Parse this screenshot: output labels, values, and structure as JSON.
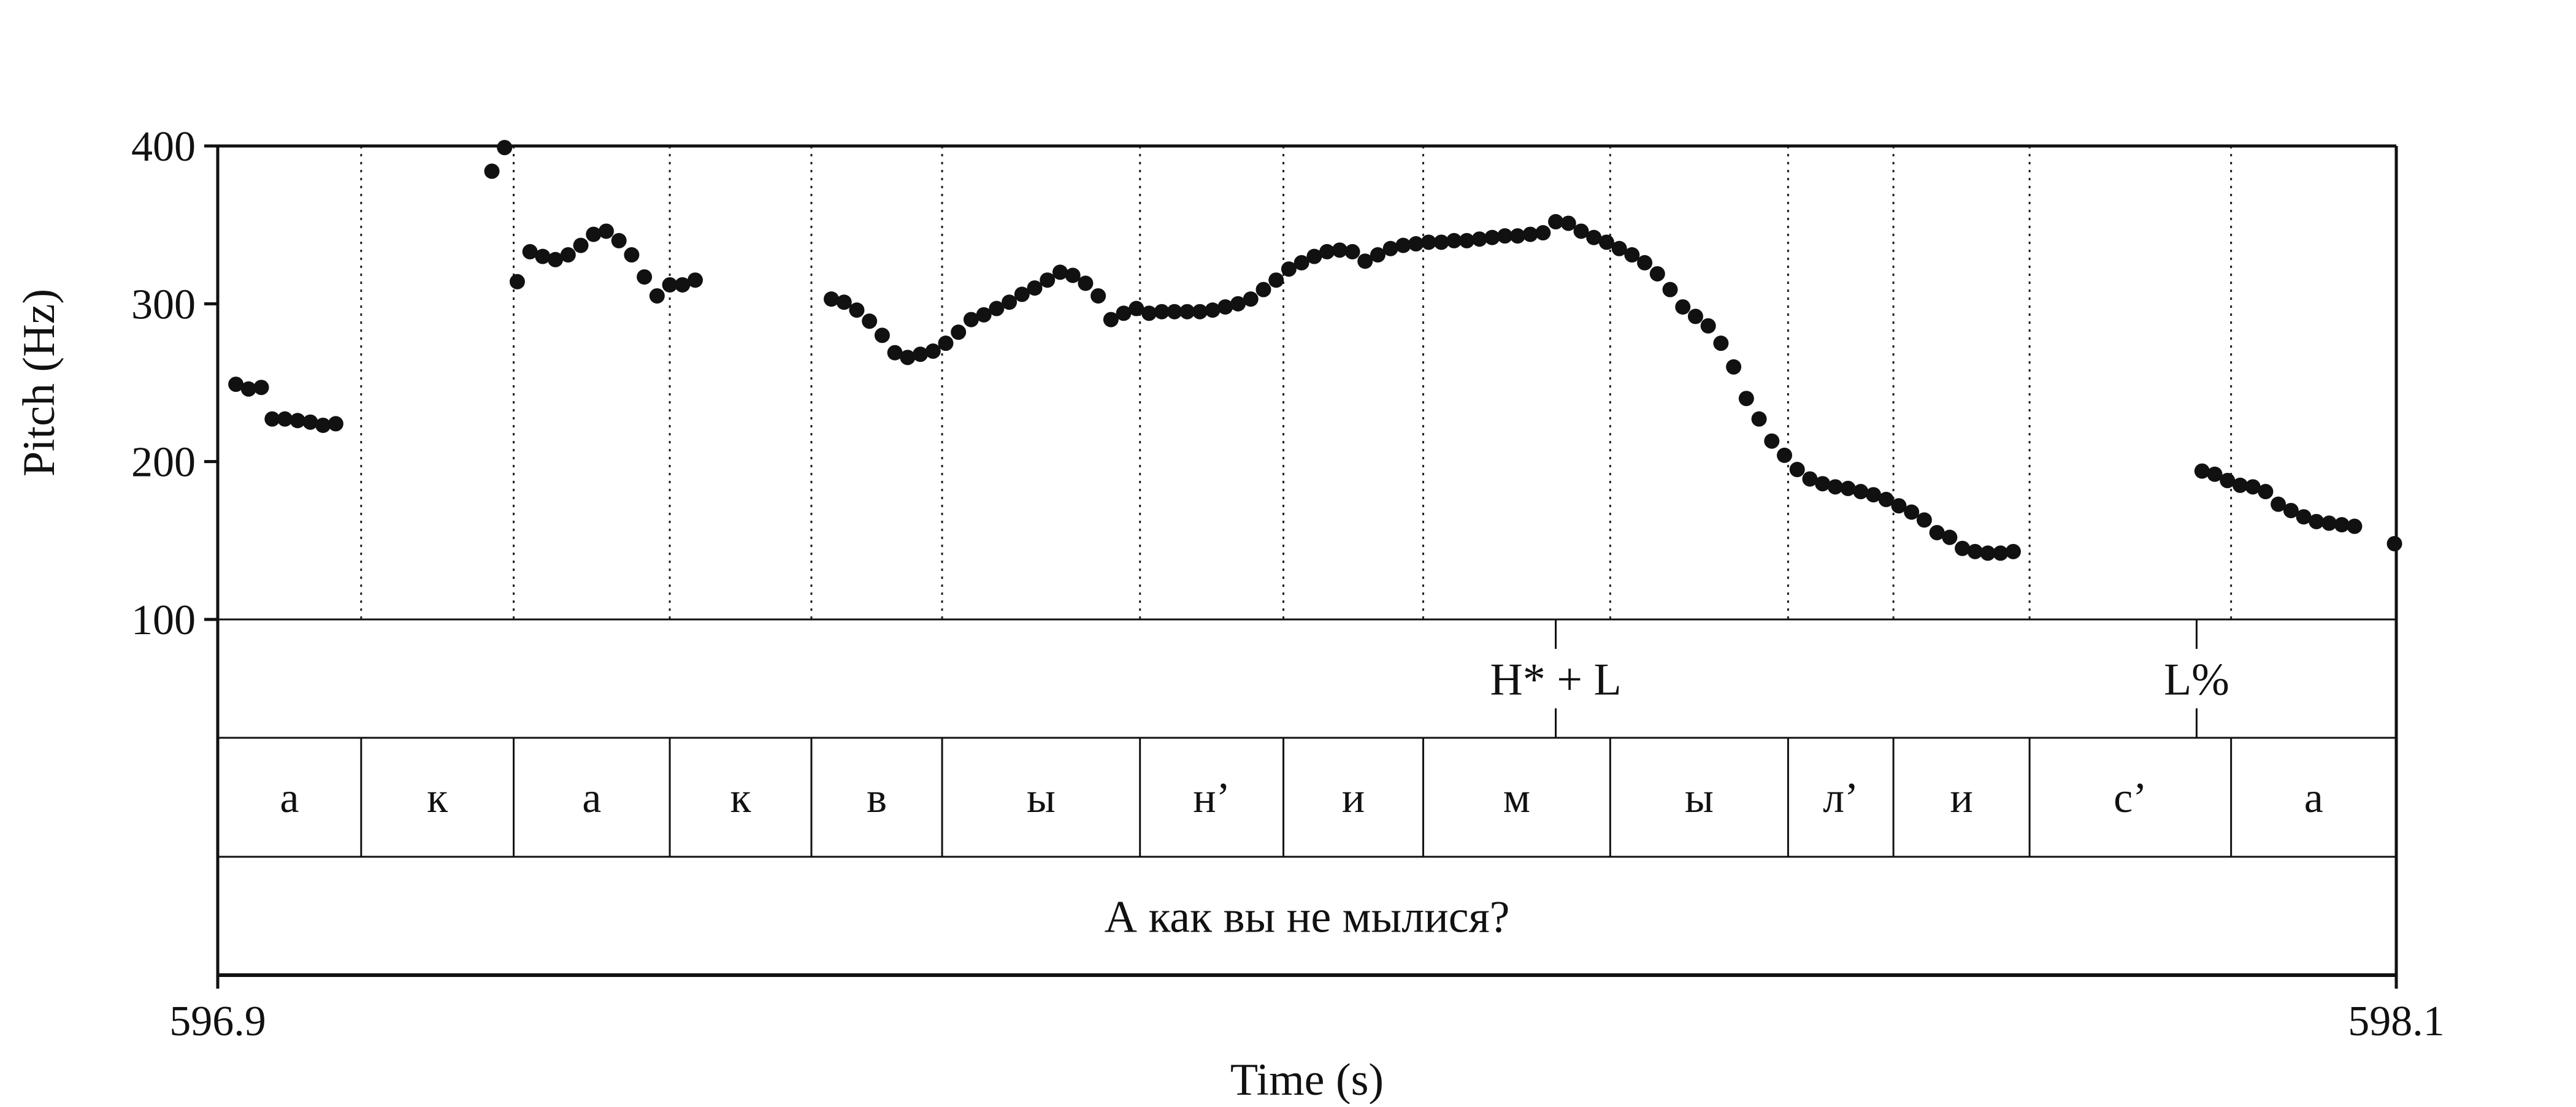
{
  "chart_data": {
    "type": "scatter",
    "title": "",
    "xlabel": "Time (s)",
    "ylabel": "Pitch (Hz)",
    "xlim": [
      596.9,
      598.1
    ],
    "ylim": [
      100,
      400
    ],
    "x_tick_labels": [
      "596.9",
      "598.1"
    ],
    "y_tick_labels": [
      "100",
      "200",
      "300",
      "400"
    ],
    "y_ticks": [
      100,
      200,
      300,
      400
    ],
    "grid": "vertical dotted lines at segment boundaries",
    "legend": "none",
    "marker_color": "#111111",
    "series": [
      {
        "points": [
          [
            596.91,
            249
          ],
          [
            596.917,
            246
          ],
          [
            596.924,
            247
          ],
          [
            596.93,
            227
          ],
          [
            596.937,
            227
          ],
          [
            596.944,
            226
          ],
          [
            596.951,
            225
          ],
          [
            596.958,
            223
          ],
          [
            596.965,
            224
          ],
          [
            597.051,
            384
          ],
          [
            597.058,
            399
          ],
          [
            597.065,
            314
          ],
          [
            597.072,
            333
          ],
          [
            597.079,
            330
          ],
          [
            597.086,
            328
          ],
          [
            597.093,
            331
          ],
          [
            597.1,
            337
          ],
          [
            597.107,
            344
          ],
          [
            597.114,
            346
          ],
          [
            597.121,
            340
          ],
          [
            597.128,
            331
          ],
          [
            597.135,
            317
          ],
          [
            597.142,
            305
          ],
          [
            597.149,
            312
          ],
          [
            597.156,
            312
          ],
          [
            597.163,
            315
          ],
          [
            597.238,
            303
          ],
          [
            597.245,
            301
          ],
          [
            597.252,
            296
          ],
          [
            597.259,
            289
          ],
          [
            597.266,
            280
          ],
          [
            597.273,
            269
          ],
          [
            597.28,
            266
          ],
          [
            597.287,
            268
          ],
          [
            597.294,
            270
          ],
          [
            597.301,
            275
          ],
          [
            597.308,
            282
          ],
          [
            597.315,
            290
          ],
          [
            597.322,
            293
          ],
          [
            597.329,
            297
          ],
          [
            597.336,
            301
          ],
          [
            597.343,
            306
          ],
          [
            597.35,
            310
          ],
          [
            597.357,
            315
          ],
          [
            597.364,
            320
          ],
          [
            597.371,
            318
          ],
          [
            597.378,
            313
          ],
          [
            597.385,
            305
          ],
          [
            597.392,
            290
          ],
          [
            597.399,
            294
          ],
          [
            597.406,
            297
          ],
          [
            597.413,
            294
          ],
          [
            597.42,
            295
          ],
          [
            597.427,
            295
          ],
          [
            597.434,
            295
          ],
          [
            597.441,
            295
          ],
          [
            597.448,
            296
          ],
          [
            597.455,
            298
          ],
          [
            597.462,
            300
          ],
          [
            597.469,
            303
          ],
          [
            597.476,
            309
          ],
          [
            597.483,
            315
          ],
          [
            597.49,
            322
          ],
          [
            597.497,
            326
          ],
          [
            597.504,
            330
          ],
          [
            597.511,
            333
          ],
          [
            597.518,
            334
          ],
          [
            597.525,
            333
          ],
          [
            597.532,
            327
          ],
          [
            597.539,
            331
          ],
          [
            597.546,
            335
          ],
          [
            597.553,
            337
          ],
          [
            597.56,
            338
          ],
          [
            597.567,
            339
          ],
          [
            597.574,
            339
          ],
          [
            597.581,
            340
          ],
          [
            597.588,
            340
          ],
          [
            597.595,
            341
          ],
          [
            597.602,
            342
          ],
          [
            597.609,
            343
          ],
          [
            597.616,
            343
          ],
          [
            597.623,
            344
          ],
          [
            597.63,
            345
          ],
          [
            597.637,
            352
          ],
          [
            597.644,
            351
          ],
          [
            597.651,
            346
          ],
          [
            597.658,
            342
          ],
          [
            597.665,
            339
          ],
          [
            597.672,
            335
          ],
          [
            597.679,
            331
          ],
          [
            597.686,
            326
          ],
          [
            597.693,
            319
          ],
          [
            597.7,
            309
          ],
          [
            597.707,
            298
          ],
          [
            597.714,
            292
          ],
          [
            597.721,
            286
          ],
          [
            597.728,
            275
          ],
          [
            597.735,
            260
          ],
          [
            597.742,
            240
          ],
          [
            597.749,
            227
          ],
          [
            597.756,
            213
          ],
          [
            597.763,
            204
          ],
          [
            597.77,
            195
          ],
          [
            597.777,
            189
          ],
          [
            597.784,
            186
          ],
          [
            597.791,
            184
          ],
          [
            597.798,
            183
          ],
          [
            597.805,
            181
          ],
          [
            597.812,
            179
          ],
          [
            597.819,
            176
          ],
          [
            597.826,
            172
          ],
          [
            597.833,
            168
          ],
          [
            597.84,
            163
          ],
          [
            597.847,
            155
          ],
          [
            597.854,
            152
          ],
          [
            597.861,
            145
          ],
          [
            597.868,
            143
          ],
          [
            597.875,
            142
          ],
          [
            597.882,
            142
          ],
          [
            597.889,
            143
          ],
          [
            597.993,
            194
          ],
          [
            598.0,
            192
          ],
          [
            598.007,
            188
          ],
          [
            598.014,
            185
          ],
          [
            598.021,
            184
          ],
          [
            598.028,
            181
          ],
          [
            598.035,
            173
          ],
          [
            598.042,
            169
          ],
          [
            598.049,
            165
          ],
          [
            598.056,
            162
          ],
          [
            598.063,
            161
          ],
          [
            598.07,
            160
          ],
          [
            598.077,
            159
          ],
          [
            598.099,
            148
          ]
        ]
      }
    ],
    "annotation_tiers": [
      {
        "name": "tones",
        "type": "point",
        "items": [
          {
            "time": 597.637,
            "label": "H* + L"
          },
          {
            "time": 597.99,
            "label": "L%"
          }
        ]
      },
      {
        "name": "segments",
        "type": "interval",
        "items": [
          {
            "start": 596.9,
            "end": 596.979,
            "label": "а"
          },
          {
            "start": 596.979,
            "end": 597.063,
            "label": "к"
          },
          {
            "start": 597.063,
            "end": 597.149,
            "label": "а"
          },
          {
            "start": 597.149,
            "end": 597.227,
            "label": "к"
          },
          {
            "start": 597.227,
            "end": 597.299,
            "label": "в"
          },
          {
            "start": 597.299,
            "end": 597.408,
            "label": "ы"
          },
          {
            "start": 597.408,
            "end": 597.487,
            "label": "н’"
          },
          {
            "start": 597.487,
            "end": 597.564,
            "label": "и"
          },
          {
            "start": 597.564,
            "end": 597.667,
            "label": "м"
          },
          {
            "start": 597.667,
            "end": 597.765,
            "label": "ы"
          },
          {
            "start": 597.765,
            "end": 597.823,
            "label": "л’"
          },
          {
            "start": 597.823,
            "end": 597.898,
            "label": "и"
          },
          {
            "start": 597.898,
            "end": 598.009,
            "label": "с’"
          },
          {
            "start": 598.009,
            "end": 598.1,
            "label": "а"
          }
        ]
      },
      {
        "name": "sentence",
        "type": "interval",
        "items": [
          {
            "start": 596.9,
            "end": 598.1,
            "label": "А как вы не мылися?"
          }
        ]
      }
    ]
  }
}
